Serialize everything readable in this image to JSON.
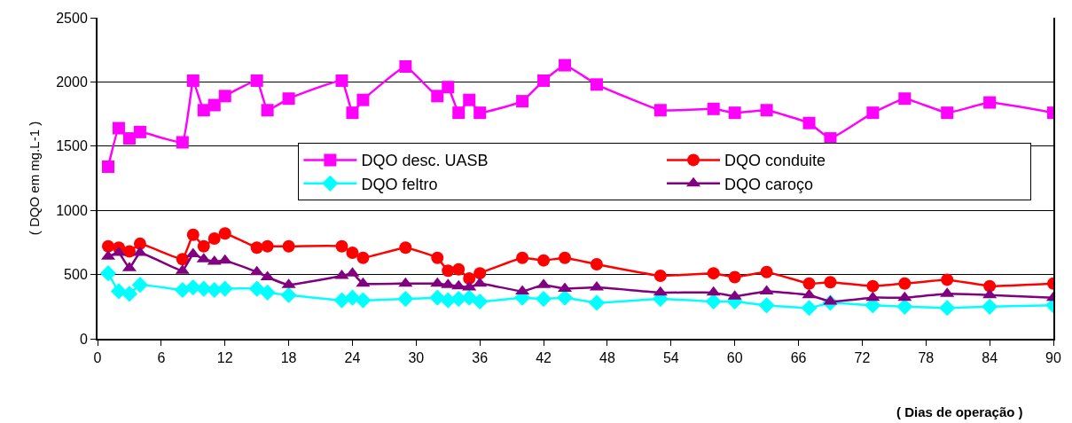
{
  "chart_data": {
    "type": "line",
    "xlabel": "( Dias de operação )",
    "ylabel": "( DQO em mg.L-1 )",
    "x": [
      1,
      2,
      3,
      4,
      8,
      9,
      10,
      11,
      12,
      15,
      16,
      18,
      23,
      24,
      25,
      29,
      32,
      33,
      34,
      35,
      36,
      40,
      42,
      44,
      47,
      53,
      58,
      60,
      63,
      67,
      69,
      73,
      76,
      80,
      84,
      90
    ],
    "series": [
      {
        "name": "DQO desc. UASB",
        "color": "#ff00ff",
        "marker": "square",
        "values": [
          1340,
          1640,
          1560,
          1610,
          1530,
          2010,
          1780,
          1820,
          1890,
          2010,
          1780,
          1870,
          2010,
          1760,
          1860,
          2120,
          1890,
          1960,
          1760,
          1860,
          1760,
          1850,
          2010,
          2130,
          1980,
          1780,
          1790,
          1760,
          1780,
          1680,
          1560,
          1760,
          1870,
          1760,
          1840,
          1760
        ]
      },
      {
        "name": "DQO conduite",
        "color": "#ff0000",
        "marker": "circle",
        "values": [
          720,
          710,
          680,
          740,
          620,
          810,
          720,
          780,
          820,
          710,
          720,
          720,
          720,
          670,
          630,
          710,
          630,
          530,
          540,
          470,
          510,
          630,
          610,
          630,
          580,
          490,
          510,
          480,
          520,
          430,
          440,
          410,
          430,
          460,
          410,
          430
        ]
      },
      {
        "name": "DQO feltro",
        "color": "#00ffff",
        "marker": "diamond",
        "values": [
          510,
          370,
          350,
          420,
          380,
          400,
          390,
          380,
          390,
          390,
          360,
          340,
          300,
          320,
          300,
          310,
          320,
          300,
          310,
          320,
          290,
          320,
          310,
          320,
          280,
          310,
          290,
          290,
          260,
          240,
          280,
          260,
          250,
          240,
          250,
          260
        ]
      },
      {
        "name": "DQO caroço",
        "color": "#800080",
        "marker": "triangle",
        "values": [
          640,
          670,
          550,
          670,
          530,
          660,
          620,
          600,
          610,
          520,
          480,
          420,
          490,
          510,
          430,
          430,
          430,
          420,
          410,
          400,
          430,
          370,
          420,
          390,
          400,
          360,
          360,
          330,
          370,
          340,
          290,
          320,
          320,
          350,
          340,
          320
        ]
      }
    ],
    "xlim": [
      0,
      90
    ],
    "xticks": [
      0,
      6,
      12,
      18,
      24,
      30,
      36,
      42,
      48,
      54,
      60,
      66,
      72,
      78,
      84,
      90
    ],
    "ylim": [
      0,
      2500
    ],
    "yticks": [
      0,
      500,
      1000,
      1500,
      2000,
      2500
    ],
    "grid": "y",
    "legend": "right",
    "line_style": "solid"
  }
}
